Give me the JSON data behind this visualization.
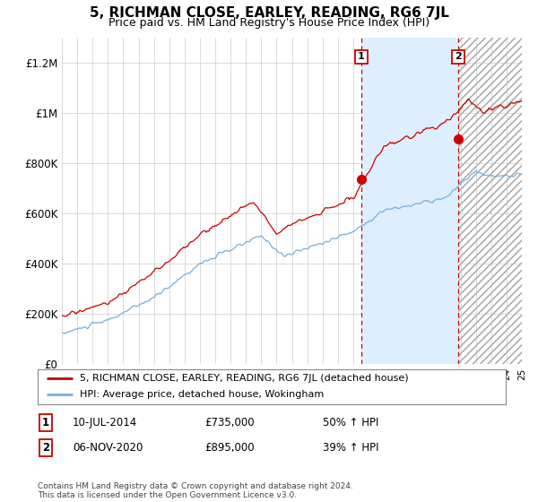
{
  "title": "5, RICHMAN CLOSE, EARLEY, READING, RG6 7JL",
  "subtitle": "Price paid vs. HM Land Registry's House Price Index (HPI)",
  "ylim": [
    0,
    1300000
  ],
  "yticks": [
    0,
    200000,
    400000,
    600000,
    800000,
    1000000,
    1200000
  ],
  "ytick_labels": [
    "£0",
    "£200K",
    "£400K",
    "£600K",
    "£800K",
    "£1M",
    "£1.2M"
  ],
  "sale1_date": 2014.53,
  "sale1_price": 735000,
  "sale1_label": "1",
  "sale2_date": 2020.85,
  "sale2_price": 895000,
  "sale2_label": "2",
  "line_color_property": "#cc0000",
  "line_color_hpi": "#7aaed6",
  "vline_color": "#cc0000",
  "background_color": "#ffffff",
  "grid_color": "#cccccc",
  "fill_color": "#ddeeff",
  "hatch_color": "#bbbbbb",
  "legend_property": "5, RICHMAN CLOSE, EARLEY, READING, RG6 7JL (detached house)",
  "legend_hpi": "HPI: Average price, detached house, Wokingham",
  "sale1_info_label": "1",
  "sale1_info_date": "10-JUL-2014",
  "sale1_info_price": "£735,000",
  "sale1_info_hpi": "50% ↑ HPI",
  "sale2_info_label": "2",
  "sale2_info_date": "06-NOV-2020",
  "sale2_info_price": "£895,000",
  "sale2_info_hpi": "39% ↑ HPI",
  "footer": "Contains HM Land Registry data © Crown copyright and database right 2024.\nThis data is licensed under the Open Government Licence v3.0.",
  "xmin": 1995,
  "xmax": 2025
}
